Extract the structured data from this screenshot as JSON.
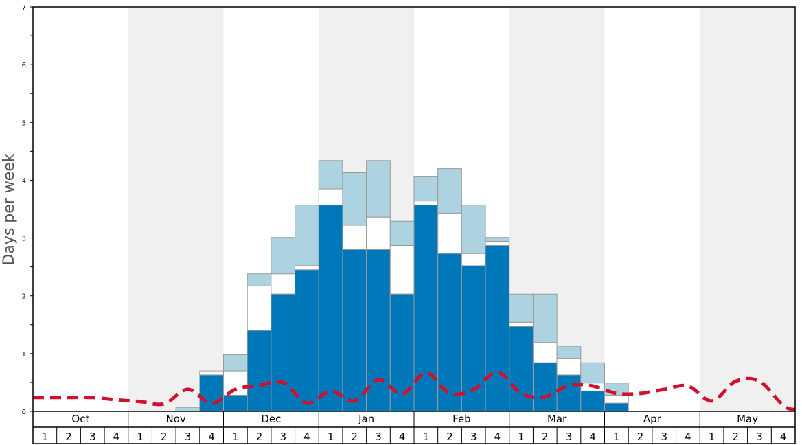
{
  "chart_data": {
    "type": "bar",
    "title": "",
    "ylabel": "Days per week",
    "ylim": [
      0,
      7
    ],
    "yticks": [
      0,
      1,
      2,
      3,
      4,
      5,
      6,
      7
    ],
    "months": [
      "Oct",
      "Nov",
      "Dec",
      "Jan",
      "Feb",
      "Mar",
      "Apr",
      "May"
    ],
    "weeks": [
      "1",
      "2",
      "3",
      "4"
    ],
    "shaded_months": [
      "Nov",
      "Jan",
      "Mar",
      "May"
    ],
    "colors": {
      "dark": "#0077b8",
      "white": "#ffffff",
      "light": "#add3e0",
      "line": "#d0102d",
      "shade": "#f0f0f0",
      "bar_stroke": "#9a9a9a"
    },
    "series": [
      {
        "values": [
          0,
          0,
          0,
          0,
          0,
          0,
          0,
          0.63,
          0.28,
          1.4,
          2.03,
          2.45,
          3.57,
          2.8,
          2.8,
          2.03,
          3.57,
          2.73,
          2.52,
          2.87,
          1.47,
          0.84,
          0.63,
          0.35,
          0.14,
          0,
          0,
          0,
          0,
          0,
          0,
          0
        ]
      },
      {
        "values": [
          0,
          0,
          0,
          0,
          0,
          0,
          0,
          0.7,
          0.7,
          2.17,
          2.38,
          2.52,
          3.85,
          3.22,
          3.36,
          2.87,
          3.64,
          3.43,
          2.73,
          2.94,
          1.54,
          1.19,
          0.91,
          0.49,
          0.28,
          0,
          0,
          0,
          0,
          0,
          0,
          0
        ]
      },
      {
        "values": [
          0,
          0,
          0,
          0,
          0,
          0,
          0.07,
          0.7,
          0.98,
          2.38,
          3.01,
          3.57,
          4.34,
          4.13,
          4.34,
          3.29,
          4.06,
          4.2,
          3.57,
          3.01,
          2.03,
          2.03,
          1.12,
          0.84,
          0.49,
          0,
          0,
          0,
          0,
          0,
          0,
          0
        ]
      },
      {
        "values": [
          0.24,
          0.24,
          0.24,
          0.2,
          0.17,
          0.13,
          0.38,
          0.14,
          0.38,
          0.45,
          0.5,
          0.14,
          0.35,
          0.18,
          0.55,
          0.3,
          0.67,
          0.31,
          0.38,
          0.68,
          0.31,
          0.25,
          0.45,
          0.44,
          0.31,
          0.31,
          0.38,
          0.44,
          0.18,
          0.52,
          0.52,
          0.1
        ]
      }
    ]
  }
}
